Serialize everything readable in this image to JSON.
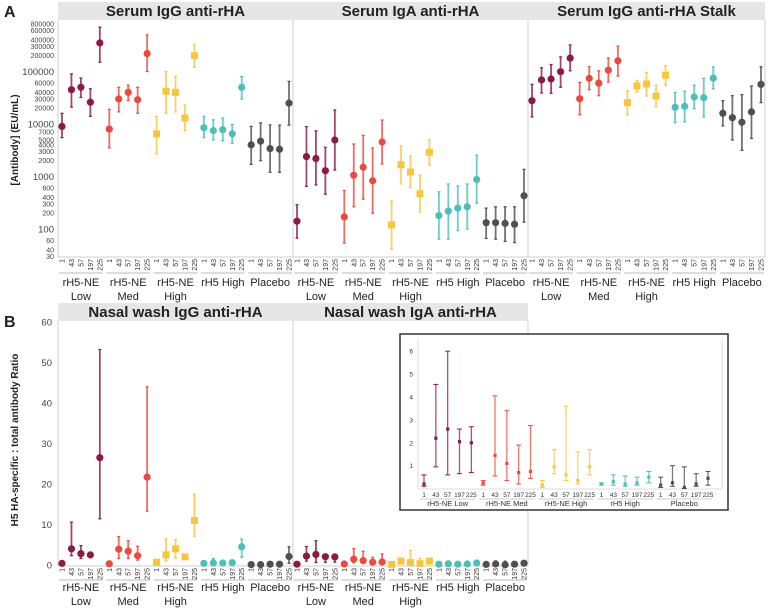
{
  "panel_letters": [
    "A",
    "B"
  ],
  "timepoint_labels": [
    "1",
    "43",
    "57",
    "197",
    "225"
  ],
  "groups": [
    {
      "name": "rH5-NE Low",
      "lines": [
        "rH5-NE",
        "Low"
      ],
      "color": "#8c1b3e",
      "marker": "circle"
    },
    {
      "name": "rH5-NE Med",
      "lines": [
        "rH5-NE",
        "Med"
      ],
      "color": "#ea4a3f",
      "marker": "circle"
    },
    {
      "name": "rH5-NE High",
      "lines": [
        "rH5-NE",
        "High"
      ],
      "color": "#f8c63e",
      "marker": "square"
    },
    {
      "name": "rH5 High",
      "lines": [
        "rH5 High"
      ],
      "color": "#4cbfb8",
      "marker": "circle"
    },
    {
      "name": "Placebo",
      "lines": [
        "Placebo"
      ],
      "color": "#4f4f4f",
      "marker": "circle"
    }
  ],
  "chart_data": [
    {
      "id": "serum-igg",
      "type": "scatter",
      "title": "Serum IgG anti-rHA",
      "ylabel": "[Antibody] (EU/mL)",
      "yscale": "log",
      "ylim": [
        30,
        800000
      ],
      "yticks": [
        30,
        40,
        60,
        100,
        200,
        300,
        400,
        600,
        1000,
        2000,
        3000,
        4000,
        5000,
        7000,
        10000,
        20000,
        30000,
        40000,
        60000,
        100000,
        200000,
        300000,
        400000,
        600000,
        800000
      ],
      "yticks_major": [
        100,
        1000,
        10000,
        100000
      ],
      "series": [
        [
          [
            9000,
            5500,
            16000
          ],
          [
            45000,
            21000,
            90000
          ],
          [
            50000,
            32000,
            75000
          ],
          [
            26000,
            14000,
            47000
          ],
          [
            350000,
            150000,
            700000
          ]
        ],
        [
          [
            8000,
            3500,
            19000
          ],
          [
            30000,
            17000,
            50000
          ],
          [
            40000,
            28000,
            55000
          ],
          [
            29000,
            16000,
            50000
          ],
          [
            220000,
            100000,
            500000
          ]
        ],
        [
          [
            6500,
            2700,
            14000
          ],
          [
            42000,
            16000,
            100000
          ],
          [
            40000,
            17000,
            80000
          ],
          [
            13000,
            7500,
            23000
          ],
          [
            200000,
            120000,
            330000
          ]
        ],
        [
          [
            8500,
            5500,
            14000
          ],
          [
            7500,
            5000,
            12000
          ],
          [
            7800,
            4800,
            13000
          ],
          [
            6500,
            4300,
            9800
          ],
          [
            50000,
            30000,
            80000
          ]
        ],
        [
          [
            4000,
            1700,
            9000
          ],
          [
            4700,
            2000,
            10500
          ],
          [
            3400,
            1200,
            9600
          ],
          [
            3300,
            1200,
            9500
          ],
          [
            25000,
            9500,
            65000
          ]
        ]
      ]
    },
    {
      "id": "serum-iga",
      "type": "scatter",
      "title": "Serum IgA anti-rHA",
      "yscale": "log",
      "ylim": [
        30,
        800000
      ],
      "series": [
        [
          [
            141,
            67,
            290
          ],
          [
            2400,
            650,
            8900
          ],
          [
            2200,
            690,
            7400
          ],
          [
            1290,
            460,
            3600
          ],
          [
            4960,
            1330,
            18500
          ]
        ],
        [
          [
            170,
            54,
            540
          ],
          [
            1060,
            265,
            4160
          ],
          [
            1500,
            370,
            6100
          ],
          [
            830,
            200,
            3500
          ],
          [
            4540,
            1730,
            11900
          ]
        ],
        [
          [
            120,
            41,
            345
          ],
          [
            1680,
            720,
            3800
          ],
          [
            1220,
            610,
            2450
          ],
          [
            470,
            210,
            1070
          ],
          [
            2890,
            1650,
            4960
          ]
        ],
        [
          [
            180,
            64,
            510
          ],
          [
            220,
            64,
            720
          ],
          [
            250,
            93,
            660
          ],
          [
            265,
            100,
            720
          ],
          [
            880,
            310,
            2560
          ]
        ],
        [
          [
            132,
            66,
            250
          ],
          [
            132,
            64,
            265
          ],
          [
            128,
            58,
            265
          ],
          [
            123,
            55,
            265
          ],
          [
            430,
            135,
            1370
          ]
        ]
      ]
    },
    {
      "id": "serum-igg-stalk",
      "type": "scatter",
      "title": "Serum IgG anti-rHA Stalk",
      "yscale": "log",
      "ylim": [
        30,
        800000
      ],
      "series": [
        [
          [
            27800,
            13600,
            57000
          ],
          [
            69000,
            39000,
            118000
          ],
          [
            72000,
            38500,
            136000
          ],
          [
            99000,
            50000,
            190000
          ],
          [
            180000,
            103000,
            320000
          ]
        ],
        [
          [
            30300,
            15000,
            62000
          ],
          [
            74000,
            45000,
            123000
          ],
          [
            60000,
            34600,
            103000
          ],
          [
            106000,
            63000,
            180000
          ],
          [
            160000,
            82000,
            305000
          ]
        ],
        [
          [
            25500,
            14800,
            43000
          ],
          [
            53000,
            40600,
            68000
          ],
          [
            58000,
            34000,
            96000
          ],
          [
            34000,
            21400,
            55000
          ],
          [
            85000,
            55000,
            128000
          ]
        ],
        [
          [
            20800,
            10600,
            40000
          ],
          [
            21700,
            11000,
            42000
          ],
          [
            32700,
            19500,
            55000
          ],
          [
            31700,
            13600,
            74000
          ],
          [
            75000,
            46500,
            122000
          ]
        ],
        [
          [
            16000,
            9200,
            27800
          ],
          [
            13200,
            4960,
            34600
          ],
          [
            10800,
            3150,
            36300
          ],
          [
            17000,
            5300,
            53000
          ],
          [
            57000,
            25500,
            123000
          ]
        ]
      ]
    },
    {
      "id": "nasal-igg",
      "type": "scatter",
      "title": "Nasal wash IgG anti-rHA",
      "ylabel": "H5 HA-specific : total antibody Ratio",
      "yscale": "linear",
      "ylim": [
        0,
        60
      ],
      "yticks": [
        0,
        10,
        20,
        30,
        40,
        50,
        60
      ],
      "series": [
        [
          [
            0.4,
            0.2,
            0.6
          ],
          [
            4,
            2.3,
            10.6
          ],
          [
            2.8,
            1.6,
            4.8
          ],
          [
            2.5,
            1.8,
            3
          ],
          [
            26.5,
            11.4,
            53.2
          ]
        ],
        [
          [
            0.3,
            0.1,
            0.5
          ],
          [
            3.9,
            1.6,
            7
          ],
          [
            3.4,
            1.6,
            6
          ],
          [
            2.3,
            1.2,
            4.6
          ],
          [
            21.7,
            13.3,
            44
          ]
        ],
        [
          [
            0.7,
            0.2,
            1.2
          ],
          [
            2.5,
            1,
            6.5
          ],
          [
            4,
            1.7,
            6.2
          ],
          [
            2,
            1.6,
            2.4
          ],
          [
            11,
            7.1,
            17.5
          ]
        ],
        [
          [
            0.4,
            0.2,
            0.6
          ],
          [
            0.5,
            0.1,
            1.6
          ],
          [
            0.5,
            0.2,
            0.8
          ],
          [
            0.6,
            0.3,
            0.9
          ],
          [
            4.5,
            1.9,
            6.4
          ]
        ],
        [
          [
            0.1,
            0,
            0.3
          ],
          [
            0.1,
            0,
            0.3
          ],
          [
            0.2,
            0,
            0.4
          ],
          [
            0.2,
            0,
            0.4
          ],
          [
            2.1,
            0.4,
            4.5
          ]
        ]
      ]
    },
    {
      "id": "nasal-iga",
      "type": "scatter",
      "title": "Nasal wash IgA anti-rHA",
      "yscale": "linear",
      "ylim": [
        0,
        60
      ],
      "inset_ylim": [
        0,
        6.5
      ],
      "inset_yticks": [
        1,
        2,
        3,
        4,
        5,
        6
      ],
      "series": [
        [
          [
            0.2,
            0.1,
            0.6
          ],
          [
            2.2,
            0.95,
            4.55
          ],
          [
            2.6,
            0.6,
            6
          ],
          [
            2.05,
            0.65,
            2.6
          ],
          [
            2,
            0.7,
            2.7
          ]
        ],
        [
          [
            0.25,
            0.15,
            0.35
          ],
          [
            1.45,
            0.55,
            4.05
          ],
          [
            1.1,
            0.35,
            3.4
          ],
          [
            0.7,
            0.2,
            1.9
          ],
          [
            0.75,
            0.45,
            2.75
          ]
        ],
        [
          [
            0.15,
            0.05,
            0.35
          ],
          [
            0.95,
            0.65,
            1.7
          ],
          [
            0.6,
            0.35,
            3.6
          ],
          [
            0.35,
            0.2,
            1.6
          ],
          [
            0.95,
            0.6,
            1.7
          ]
        ],
        [
          [
            0.2,
            0.15,
            0.25
          ],
          [
            0.3,
            0.15,
            0.6
          ],
          [
            0.2,
            0.1,
            0.55
          ],
          [
            0.25,
            0.15,
            0.5
          ],
          [
            0.5,
            0.25,
            0.75
          ]
        ],
        [
          [
            0.15,
            0.05,
            0.5
          ],
          [
            0.25,
            0.1,
            1
          ],
          [
            0.05,
            0,
            0.95
          ],
          [
            0.2,
            0.1,
            0.65
          ],
          [
            0.45,
            0.15,
            0.75
          ]
        ]
      ]
    }
  ]
}
